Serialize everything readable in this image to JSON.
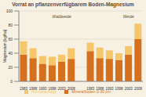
{
  "chart_data": {
    "type": "bar",
    "title": "Vorrat an pflanzenverfügbarem Boden-Magnesium",
    "y_label": "Magnesium [kg/ha]",
    "categories": [
      "1983",
      "1988",
      "1993",
      "1998",
      "2003",
      "2008",
      null,
      "1983",
      "1988",
      "1993",
      "1998",
      "2003",
      "2008"
    ],
    "series": [
      {
        "name": "Mineralboden 0-30 cm",
        "color": "#d4701e",
        "values": [
          38,
          33,
          25,
          23,
          28,
          32,
          null,
          43,
          33,
          32,
          30,
          38,
          60
        ]
      },
      {
        "name": "Humusauflage",
        "color": "#f5c66a",
        "values": [
          19,
          14,
          11,
          12,
          10,
          15,
          null,
          12,
          15,
          12,
          10,
          12,
          22
        ]
      }
    ],
    "annotations": [
      {
        "text": "Waldweide",
        "category_index": 4
      },
      {
        "text": "Weide",
        "category_index": 11
      }
    ],
    "ylim": [
      0,
      100
    ],
    "yticks": [
      0,
      20,
      40,
      60,
      80,
      100
    ],
    "grid": true,
    "stacked": true,
    "legend": "bottom"
  }
}
